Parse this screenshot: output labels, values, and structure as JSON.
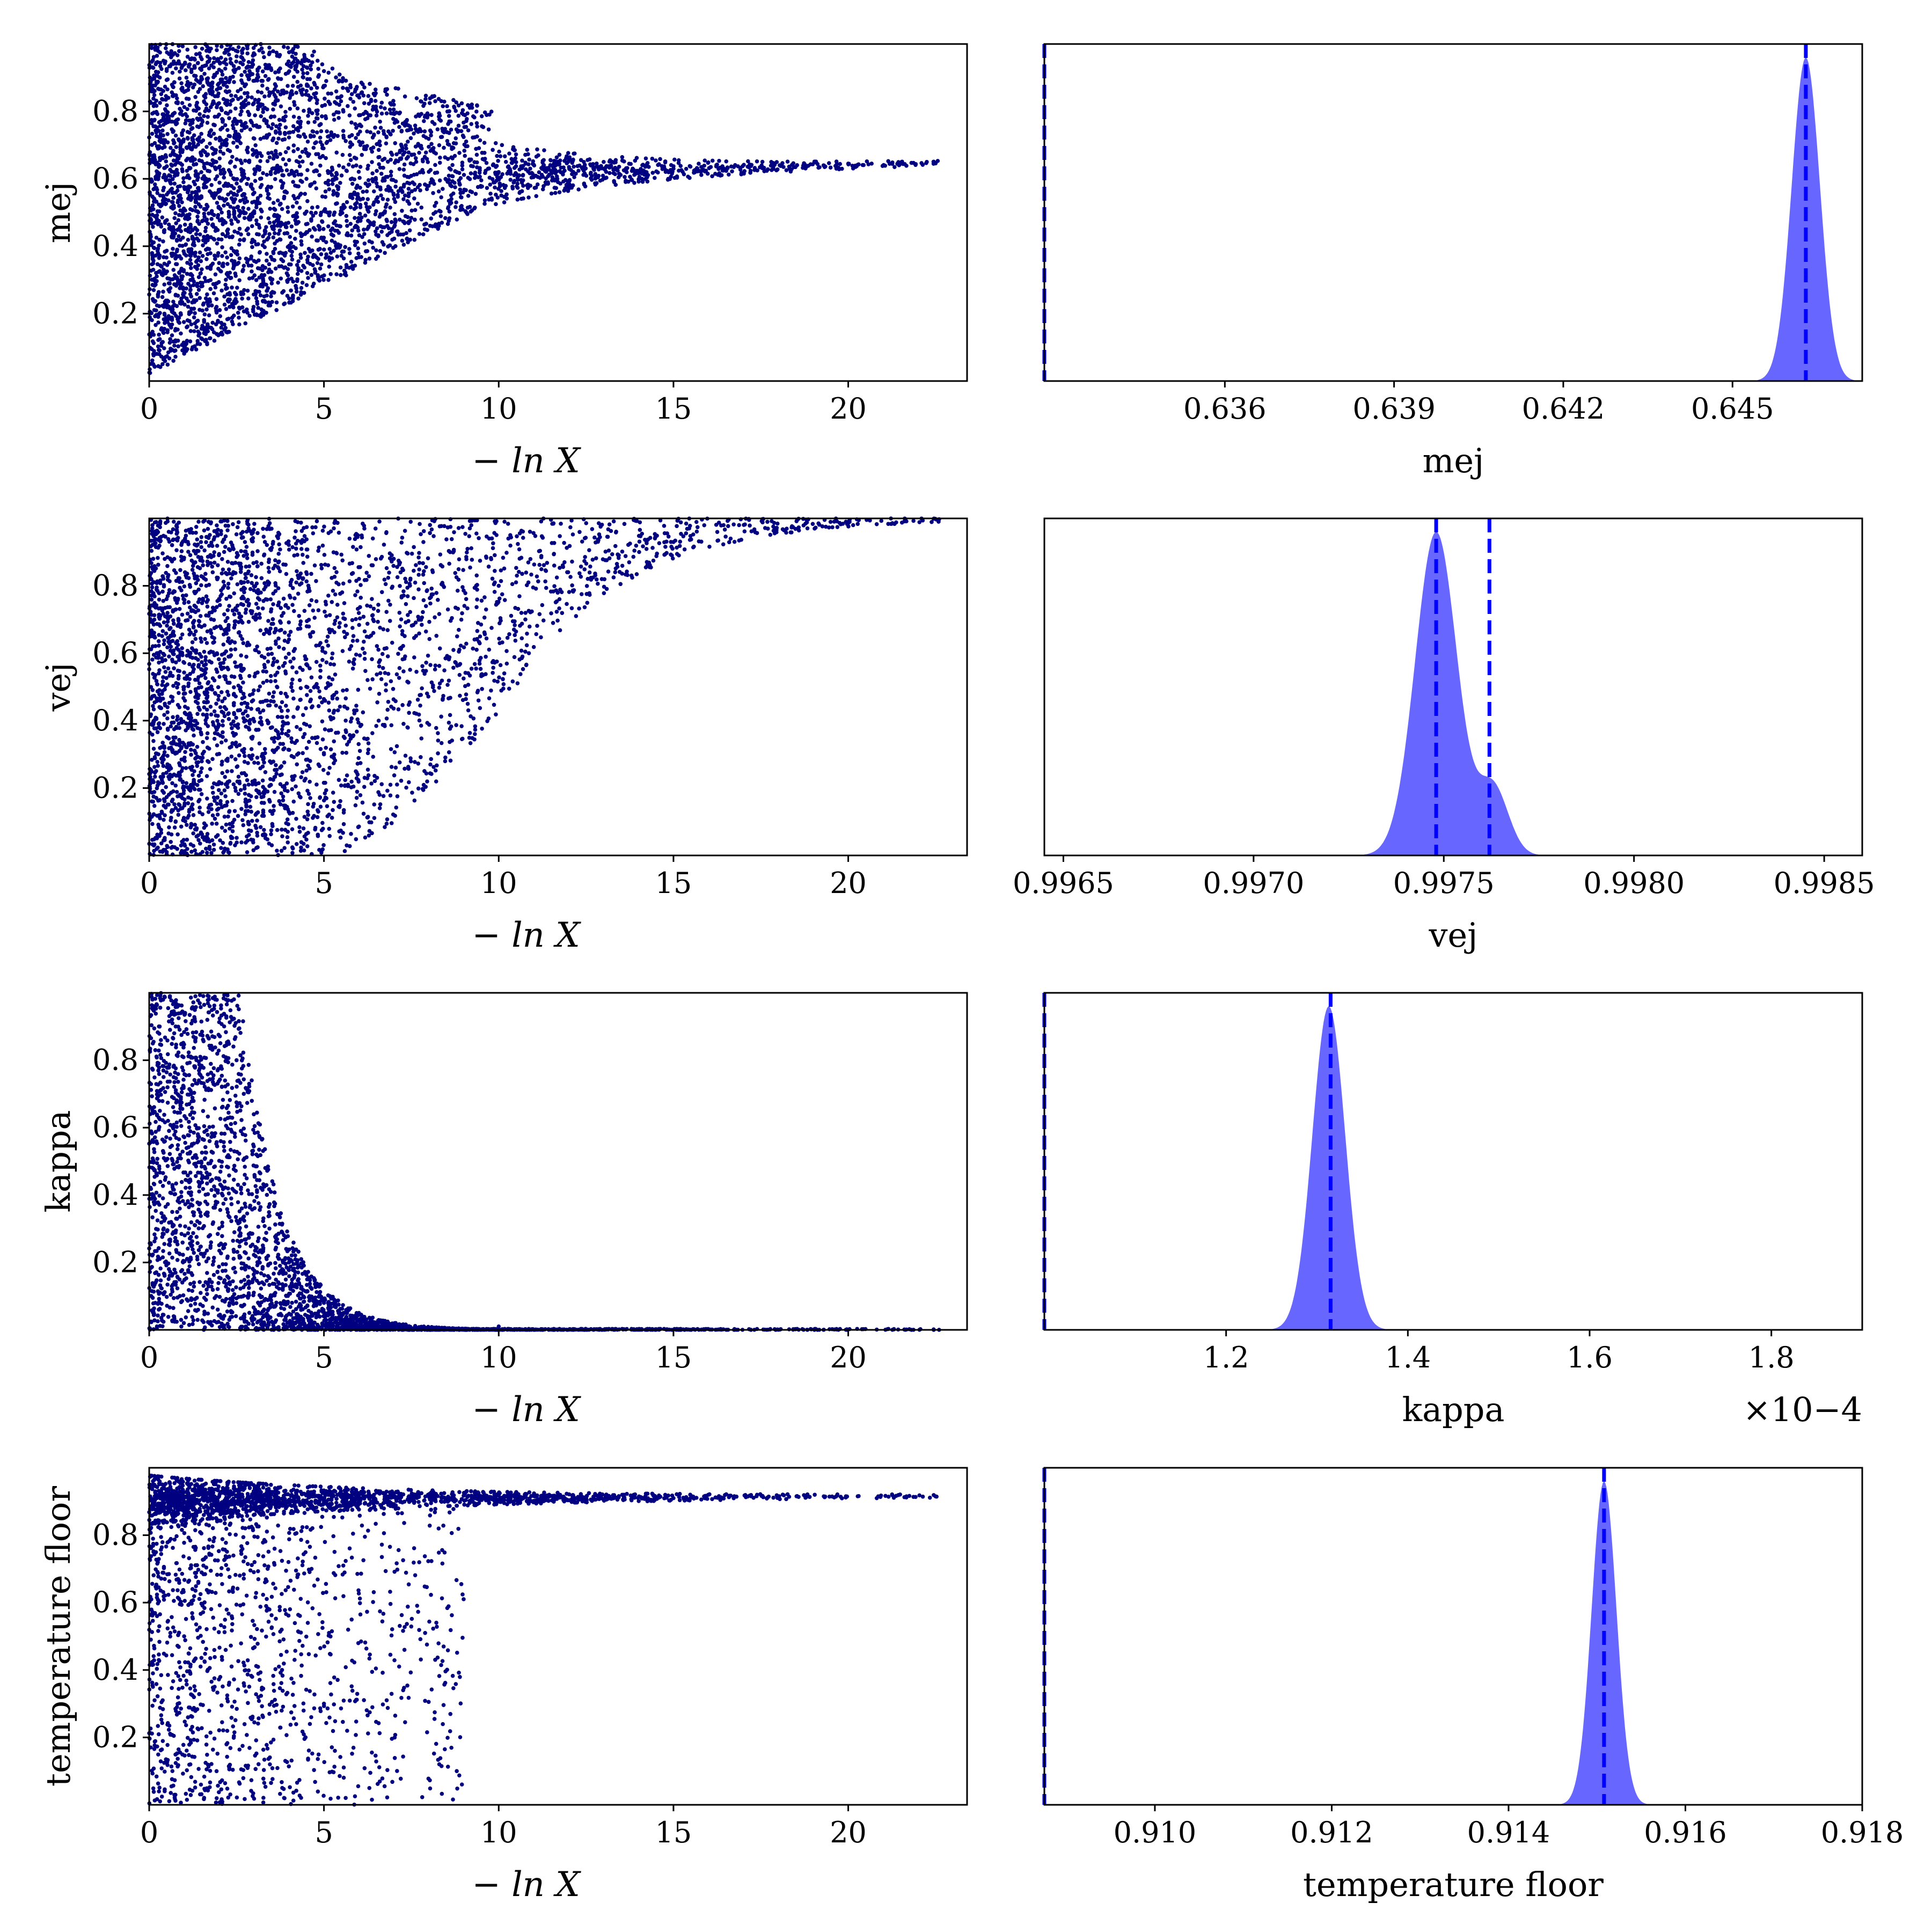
{
  "colors": {
    "scatter": "#000080",
    "hist_fill": "#5a5aff",
    "truth_line": "#0000ff",
    "axes": "#000000"
  },
  "chart_data": [
    {
      "type": "scatter",
      "xlabel": "− ln X",
      "ylabel": "mej",
      "xlim": [
        0,
        23.4
      ],
      "ylim": [
        0,
        1
      ],
      "xticks": [
        "0",
        "5",
        "10",
        "15",
        "20"
      ],
      "yticks": [
        "0.2",
        "0.4",
        "0.6",
        "0.8"
      ],
      "shape": "spindle",
      "points_sample": [
        [
          0.5,
          0.92
        ],
        [
          2.0,
          0.35
        ],
        [
          4.5,
          0.6
        ],
        [
          7.0,
          0.82
        ],
        [
          10.0,
          0.62
        ],
        [
          15.0,
          0.63
        ],
        [
          20.0,
          0.645
        ],
        [
          22.5,
          0.646
        ]
      ]
    },
    {
      "type": "area",
      "xlabel": "mej",
      "xlim": [
        0.6328,
        0.6473
      ],
      "xticks": [
        "0.636",
        "0.639",
        "0.642",
        "0.645"
      ],
      "peaks": [
        {
          "center": 0.6463,
          "sigma": 0.00025,
          "height": 0.96
        }
      ],
      "truth_lines": [
        0.6463,
        0.6328
      ]
    },
    {
      "type": "scatter",
      "xlabel": "− ln X",
      "ylabel": "vej",
      "xlim": [
        0,
        23.4
      ],
      "ylim": [
        0,
        1
      ],
      "xticks": [
        "0",
        "5",
        "10",
        "15",
        "20"
      ],
      "yticks": [
        "0.2",
        "0.4",
        "0.6",
        "0.8"
      ],
      "shape": "rising",
      "points_sample": [
        [
          1.0,
          0.5
        ],
        [
          5.0,
          0.3
        ],
        [
          10.0,
          0.8
        ],
        [
          15.0,
          0.93
        ],
        [
          20.0,
          0.99
        ],
        [
          22.6,
          0.9975
        ]
      ]
    },
    {
      "type": "area",
      "xlabel": "vej",
      "xlim": [
        0.99645,
        0.9986
      ],
      "xticks": [
        "0.9965",
        "0.9970",
        "0.9975",
        "0.9980",
        "0.9985"
      ],
      "peaks": [
        {
          "center": 0.99748,
          "sigma": 5.5e-05,
          "height": 0.96
        },
        {
          "center": 0.99763,
          "sigma": 4e-05,
          "height": 0.2
        }
      ],
      "truth_lines": [
        0.99748,
        0.99762
      ]
    },
    {
      "type": "scatter",
      "xlabel": "− ln X",
      "ylabel": "kappa",
      "xlim": [
        0,
        23.4
      ],
      "ylim": [
        0,
        1
      ],
      "xticks": [
        "0",
        "5",
        "10",
        "15",
        "20"
      ],
      "yticks": [
        "0.2",
        "0.4",
        "0.6",
        "0.8"
      ],
      "shape": "decaying",
      "points_sample": [
        [
          0.3,
          0.9
        ],
        [
          2.5,
          0.8
        ],
        [
          4.0,
          0.2
        ],
        [
          6.0,
          0.05
        ],
        [
          10.0,
          0.01
        ],
        [
          22.6,
          0.0001
        ]
      ]
    },
    {
      "type": "area",
      "xlabel": "kappa",
      "offset_text": "×10−4",
      "xlim": [
        1.0,
        1.9
      ],
      "xticks": [
        "1.2",
        "1.4",
        "1.6",
        "1.8"
      ],
      "peaks": [
        {
          "center": 1.313,
          "sigma": 0.018,
          "height": 0.96
        }
      ],
      "truth_lines": [
        1.315,
        1.0
      ]
    },
    {
      "type": "scatter",
      "xlabel": "− ln X",
      "ylabel": "temperature floor",
      "xlim": [
        0,
        23.4
      ],
      "ylim": [
        0,
        1
      ],
      "xticks": [
        "0",
        "5",
        "10",
        "15",
        "20"
      ],
      "yticks": [
        "0.2",
        "0.4",
        "0.6",
        "0.8"
      ],
      "shape": "plateau",
      "points_sample": [
        [
          1.0,
          0.5
        ],
        [
          5.0,
          0.3
        ],
        [
          8.8,
          0.1
        ],
        [
          5.0,
          0.9
        ],
        [
          15.0,
          0.91
        ],
        [
          22.5,
          0.9151
        ]
      ]
    },
    {
      "type": "area",
      "xlabel": "temperature floor",
      "xlim": [
        0.90875,
        0.918
      ],
      "xticks": [
        "0.910",
        "0.912",
        "0.914",
        "0.916",
        "0.918"
      ],
      "peaks": [
        {
          "center": 0.91508,
          "sigma": 0.00014,
          "height": 0.96
        }
      ],
      "truth_lines": [
        0.91508,
        0.90875
      ]
    }
  ]
}
